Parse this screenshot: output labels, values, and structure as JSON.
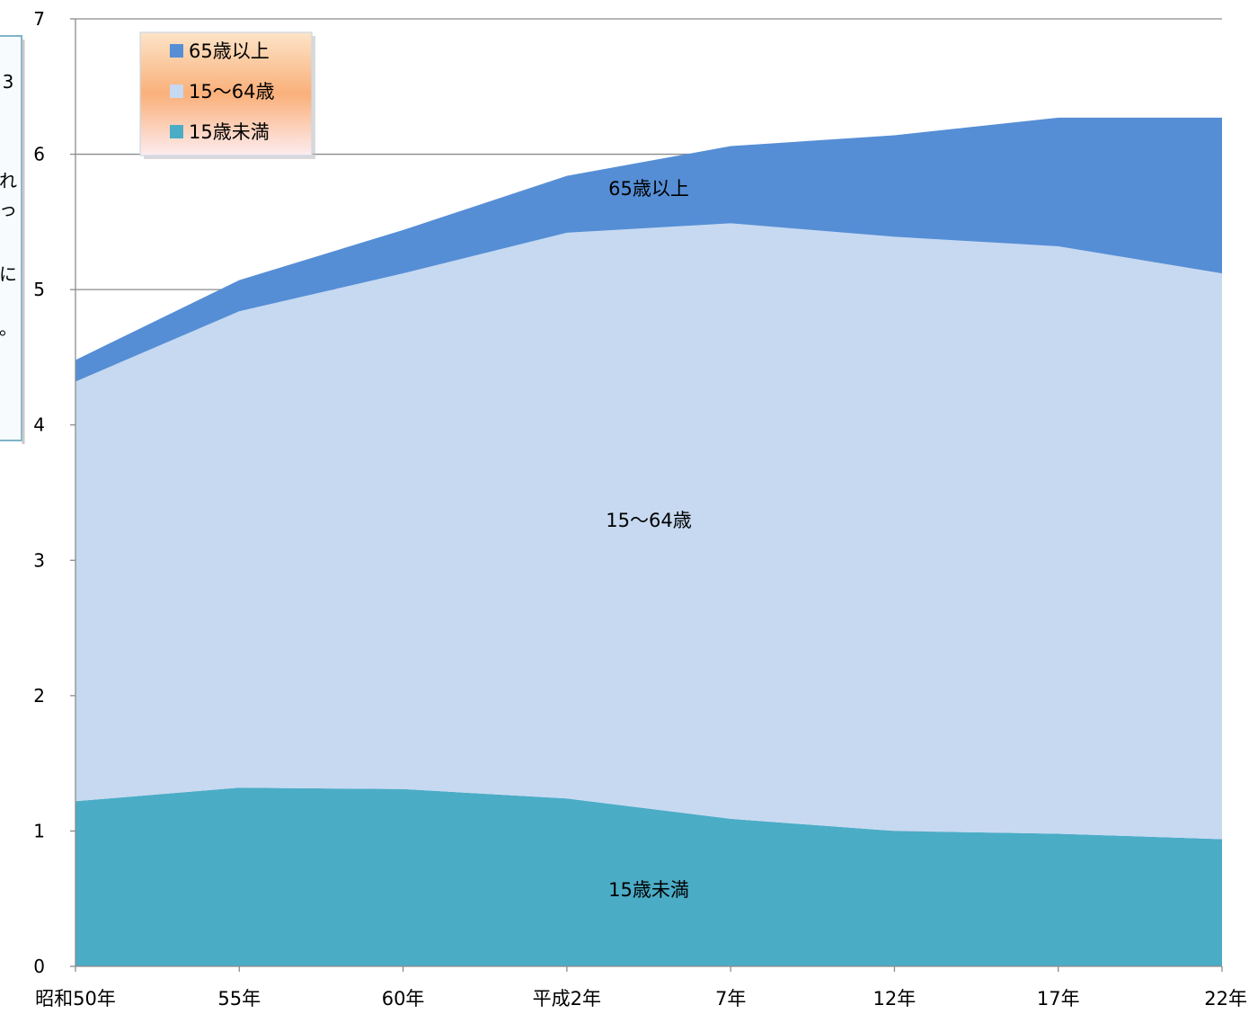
{
  "colors": {
    "under_15": "#4BACC6",
    "age_15_64": "#C6D9F1",
    "over_65": "#558ED5",
    "grid": "#8C8C8C",
    "legend_gradient_top": "#FCE4C8",
    "legend_gradient_mid": "#FAB07A",
    "legend_gradient_bottom": "#FDECEF",
    "side_panel_border": "#7FB4C8"
  },
  "side_panel_glyphs": [
    "3",
    "れ",
    "っ",
    "に",
    "。"
  ],
  "chart_data": {
    "type": "area",
    "stacked": true,
    "categories": [
      "昭和50年",
      "55年",
      "60年",
      "平成2年",
      "7年",
      "12年",
      "17年",
      "22年"
    ],
    "series": [
      {
        "name": "15歳未満",
        "values": [
          1.22,
          1.32,
          1.31,
          1.24,
          1.09,
          1.0,
          0.98,
          0.94
        ]
      },
      {
        "name": "15〜64歳",
        "values": [
          3.1,
          3.52,
          3.81,
          4.18,
          4.4,
          4.39,
          4.34,
          4.18
        ]
      },
      {
        "name": "65歳以上",
        "values": [
          0.16,
          0.23,
          0.32,
          0.42,
          0.57,
          0.75,
          0.95,
          1.15
        ]
      }
    ],
    "ylim": [
      0,
      7
    ],
    "yticks": [
      0,
      1,
      2,
      3,
      4,
      5,
      6,
      7
    ],
    "grid": true,
    "legend_position": "top-left",
    "legend_order": [
      "65歳以上",
      "15〜64歳",
      "15歳未満"
    ]
  }
}
